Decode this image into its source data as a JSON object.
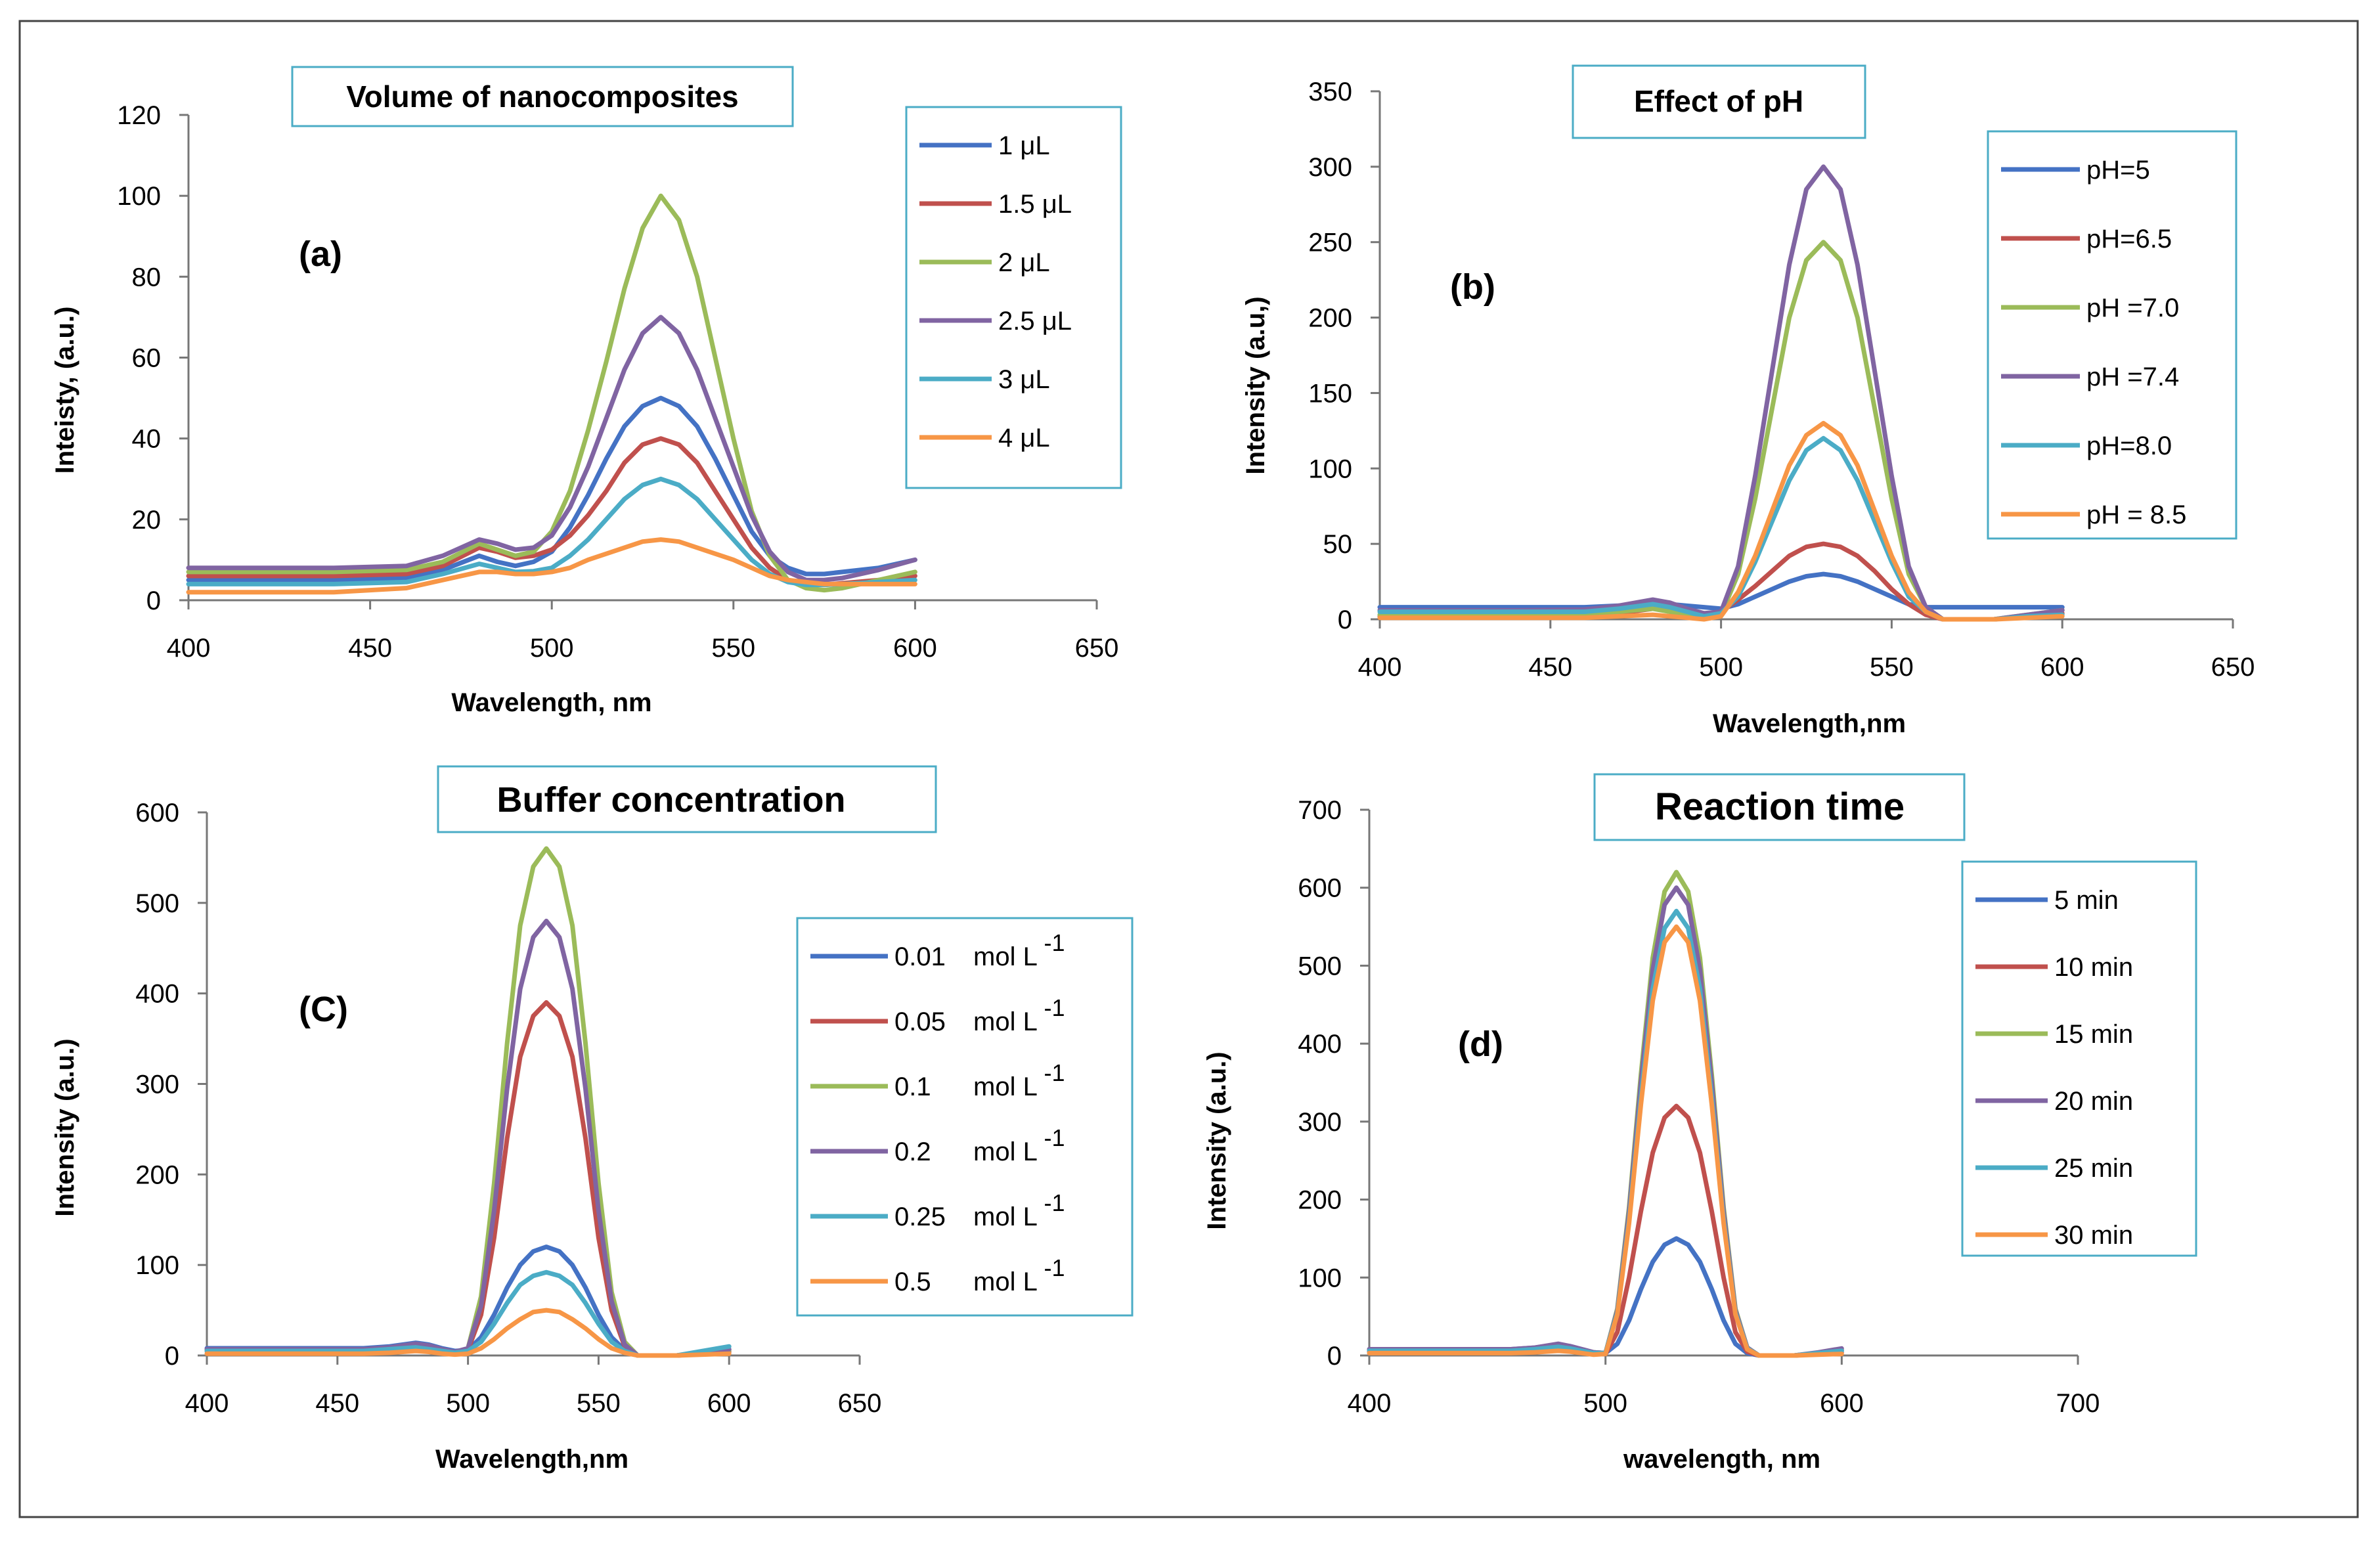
{
  "chart_data": [
    {
      "panel": "(a)",
      "type": "line",
      "title": "Volume of nanocomposites",
      "xlabel": "Wavelength, nm",
      "ylabel": "Inteisty, (a.u.)",
      "xlim": [
        400,
        650
      ],
      "ylim": [
        0,
        120
      ],
      "xticks": [
        400,
        450,
        500,
        550,
        600,
        650
      ],
      "yticks": [
        0,
        20,
        40,
        60,
        80,
        100,
        120
      ],
      "x": [
        400,
        420,
        440,
        460,
        470,
        480,
        485,
        490,
        495,
        500,
        505,
        510,
        515,
        520,
        525,
        530,
        535,
        540,
        545,
        550,
        555,
        560,
        565,
        570,
        575,
        580,
        590,
        600
      ],
      "series": [
        {
          "name": "1 μL",
          "color": "#4472c4",
          "values": [
            5,
            5,
            5,
            5.5,
            7.5,
            11,
            9.5,
            8.5,
            9.5,
            12,
            18,
            26,
            35,
            43,
            48,
            50,
            48,
            43,
            35,
            26,
            17,
            11,
            8,
            6.5,
            6.5,
            7,
            8,
            10
          ]
        },
        {
          "name": "1.5 μL",
          "color": "#c0504d",
          "values": [
            6,
            6,
            6,
            6.5,
            8.5,
            13,
            12,
            10.5,
            11,
            12.5,
            16,
            21,
            27,
            34,
            38.5,
            40,
            38.5,
            34,
            27,
            20,
            13,
            8,
            5,
            4,
            3.8,
            4.2,
            5,
            6
          ]
        },
        {
          "name": "2 μL",
          "color": "#9bbb59",
          "values": [
            7,
            7,
            7,
            7.5,
            9.5,
            14,
            12.5,
            11,
            12,
            17,
            27,
            42,
            59,
            77,
            92,
            100,
            94,
            80,
            60,
            40,
            22,
            11,
            5,
            3,
            2.5,
            3,
            5,
            7
          ]
        },
        {
          "name": "2.5 μL",
          "color": "#8064a2",
          "values": [
            8,
            8,
            8,
            8.5,
            11,
            15,
            14,
            12.5,
            13,
            16,
            23,
            33,
            45,
            57,
            66,
            70,
            66,
            57,
            45,
            33,
            21,
            12,
            7,
            5,
            5,
            5.5,
            7.5,
            10
          ]
        },
        {
          "name": "3 μL",
          "color": "#4bacc6",
          "values": [
            4,
            4,
            4,
            4.5,
            6.5,
            9,
            8,
            7,
            7.2,
            8,
            11,
            15,
            20,
            25,
            28.5,
            30,
            28.5,
            25,
            20,
            15,
            10,
            6.5,
            4.5,
            3.8,
            3.8,
            4,
            4.5,
            5
          ]
        },
        {
          "name": "4 μL",
          "color": "#f79646",
          "values": [
            2,
            2,
            2,
            3,
            5,
            7,
            7,
            6.5,
            6.5,
            7,
            8,
            10,
            11.5,
            13,
            14.5,
            15,
            14.5,
            13,
            11.5,
            10,
            8,
            6,
            5,
            4.5,
            4,
            4,
            4,
            4
          ]
        }
      ],
      "panel_label": "(a)"
    },
    {
      "panel": "(b)",
      "type": "line",
      "title": "Effect of pH",
      "xlabel": "Wavelength,nm",
      "ylabel": "Intensity (a.u,)",
      "xlim": [
        400,
        650
      ],
      "ylim": [
        0,
        350
      ],
      "xticks": [
        400,
        450,
        500,
        550,
        600,
        650
      ],
      "yticks": [
        0,
        50,
        100,
        150,
        200,
        250,
        300,
        350
      ],
      "x": [
        400,
        420,
        440,
        460,
        470,
        480,
        485,
        490,
        495,
        500,
        505,
        510,
        515,
        520,
        525,
        530,
        535,
        540,
        545,
        550,
        555,
        560,
        565,
        570,
        575,
        580,
        590,
        600
      ],
      "series": [
        {
          "name": "pH=5",
          "color": "#4472c4",
          "values": [
            8,
            8,
            8,
            8,
            9,
            11,
            10,
            9,
            8,
            7,
            10,
            15,
            20,
            25,
            28.5,
            30,
            28.5,
            25,
            20,
            15,
            10,
            8,
            8,
            8,
            8,
            8,
            8,
            8
          ]
        },
        {
          "name": "pH=6.5",
          "color": "#c0504d",
          "values": [
            2,
            2,
            2,
            2.5,
            4,
            7,
            6,
            4,
            3,
            5,
            13,
            22,
            32,
            42,
            48,
            50,
            48,
            42,
            32,
            20,
            10,
            3,
            0,
            0,
            0,
            0,
            2,
            4
          ]
        },
        {
          "name": "pH =7.0",
          "color": "#9bbb59",
          "values": [
            3,
            3,
            3,
            3,
            5,
            7,
            5,
            3,
            1,
            3,
            30,
            80,
            140,
            200,
            238,
            250,
            238,
            200,
            140,
            80,
            30,
            8,
            0,
            0,
            0,
            0,
            3,
            6
          ]
        },
        {
          "name": "pH =7.4",
          "color": "#8064a2",
          "values": [
            6,
            6,
            6,
            6.5,
            9,
            13,
            11,
            7,
            4,
            5,
            35,
            95,
            165,
            235,
            285,
            300,
            285,
            235,
            165,
            95,
            35,
            8,
            0,
            0,
            0,
            0,
            3,
            6
          ]
        },
        {
          "name": "pH=8.0",
          "color": "#4bacc6",
          "values": [
            5,
            5,
            5,
            5,
            7,
            10,
            8,
            5,
            2,
            4,
            15,
            38,
            65,
            92,
            112,
            120,
            112,
            92,
            65,
            38,
            15,
            5,
            0,
            0,
            0,
            0,
            2,
            3
          ]
        },
        {
          "name": "pH = 8.5",
          "color": "#f79646",
          "values": [
            1,
            1,
            1,
            1,
            2,
            3,
            2,
            1,
            0,
            2,
            18,
            42,
            72,
            102,
            122,
            130,
            122,
            102,
            72,
            42,
            18,
            5,
            0,
            0,
            0,
            0,
            1,
            2
          ]
        }
      ],
      "panel_label": "(b)"
    },
    {
      "panel": "(C)",
      "type": "line",
      "title": "Buffer concentration",
      "xlabel": "Wavelength,nm",
      "ylabel": "Intensity (a.u.)",
      "xlim": [
        400,
        650
      ],
      "ylim": [
        0,
        600
      ],
      "xticks": [
        400,
        450,
        500,
        550,
        600,
        650
      ],
      "yticks": [
        0,
        100,
        200,
        300,
        400,
        500,
        600
      ],
      "x": [
        400,
        420,
        440,
        460,
        470,
        480,
        485,
        490,
        495,
        500,
        505,
        510,
        515,
        520,
        525,
        530,
        535,
        540,
        545,
        550,
        555,
        560,
        565,
        570,
        575,
        580,
        590,
        600
      ],
      "series": [
        {
          "name": "0.01",
          "color": "#4472c4",
          "values": [
            8,
            8,
            8,
            8,
            10,
            14,
            12,
            8,
            5,
            6,
            20,
            45,
            75,
            100,
            115,
            120,
            115,
            100,
            75,
            45,
            20,
            6,
            0,
            0,
            0,
            0,
            3,
            6
          ]
        },
        {
          "name": "0.05",
          "color": "#c0504d",
          "values": [
            5,
            5,
            5,
            5,
            7,
            10,
            8,
            5,
            3,
            6,
            45,
            130,
            240,
            330,
            375,
            390,
            375,
            330,
            240,
            130,
            50,
            10,
            0,
            0,
            0,
            0,
            2,
            4
          ]
        },
        {
          "name": "0.1",
          "color": "#9bbb59",
          "values": [
            6,
            6,
            6,
            6,
            8,
            12,
            10,
            6,
            3,
            8,
            65,
            190,
            345,
            475,
            540,
            560,
            540,
            475,
            345,
            190,
            70,
            15,
            0,
            0,
            0,
            0,
            3,
            6
          ]
        },
        {
          "name": "0.2",
          "color": "#8064a2",
          "values": [
            7,
            7,
            7,
            7,
            9,
            13,
            11,
            7,
            4,
            8,
            55,
            160,
            295,
            405,
            462,
            480,
            462,
            405,
            295,
            160,
            60,
            12,
            0,
            0,
            0,
            0,
            3,
            7
          ]
        },
        {
          "name": "0.25",
          "color": "#4bacc6",
          "values": [
            5,
            5,
            5,
            5,
            7,
            9,
            7,
            5,
            3,
            5,
            15,
            35,
            58,
            78,
            88,
            92,
            88,
            78,
            58,
            35,
            15,
            5,
            0,
            0,
            0,
            0,
            5,
            10
          ]
        },
        {
          "name": "0.5",
          "color": "#f79646",
          "values": [
            2,
            2,
            2,
            2,
            3,
            5,
            4,
            2,
            1,
            2,
            8,
            18,
            30,
            40,
            48,
            50,
            48,
            40,
            30,
            18,
            8,
            3,
            0,
            0,
            0,
            0,
            1,
            2
          ]
        }
      ],
      "legend_unit": "mol L",
      "legend_sup": "-1",
      "panel_label": "(C)"
    },
    {
      "panel": "(d)",
      "type": "line",
      "title": "Reaction time",
      "xlabel": "wavelength, nm",
      "ylabel": "Intensity (a.u.)",
      "xlim": [
        400,
        700
      ],
      "ylim": [
        0,
        700
      ],
      "xticks": [
        400,
        500,
        600,
        700
      ],
      "yticks": [
        0,
        100,
        200,
        300,
        400,
        500,
        600,
        700
      ],
      "x": [
        400,
        420,
        440,
        460,
        470,
        480,
        485,
        490,
        495,
        500,
        505,
        510,
        515,
        520,
        525,
        530,
        535,
        540,
        545,
        550,
        555,
        560,
        565,
        570,
        575,
        580,
        590,
        600
      ],
      "series": [
        {
          "name": "5 min",
          "color": "#4472c4",
          "values": [
            8,
            8,
            8,
            8,
            10,
            14,
            12,
            8,
            4,
            3,
            15,
            45,
            85,
            120,
            142,
            150,
            142,
            120,
            85,
            45,
            15,
            3,
            0,
            0,
            0,
            0,
            3,
            6
          ]
        },
        {
          "name": "10 min",
          "color": "#c0504d",
          "values": [
            5,
            5,
            5,
            5,
            7,
            10,
            8,
            5,
            2,
            2,
            30,
            100,
            185,
            260,
            305,
            320,
            305,
            260,
            185,
            100,
            30,
            5,
            0,
            0,
            0,
            0,
            2,
            4
          ]
        },
        {
          "name": "15 min",
          "color": "#9bbb59",
          "values": [
            7,
            7,
            7,
            7,
            9,
            13,
            11,
            7,
            4,
            3,
            60,
            190,
            360,
            510,
            595,
            620,
            595,
            510,
            360,
            190,
            60,
            10,
            0,
            0,
            0,
            0,
            3,
            7
          ]
        },
        {
          "name": "20 min",
          "color": "#8064a2",
          "values": [
            8,
            8,
            8,
            8,
            10,
            15,
            12,
            8,
            4,
            3,
            58,
            185,
            350,
            495,
            578,
            600,
            578,
            495,
            350,
            185,
            58,
            10,
            0,
            0,
            0,
            0,
            4,
            9
          ]
        },
        {
          "name": "25 min",
          "color": "#4bacc6",
          "values": [
            6,
            6,
            6,
            6,
            8,
            11,
            9,
            6,
            3,
            3,
            55,
            175,
            332,
            470,
            548,
            570,
            548,
            470,
            332,
            175,
            55,
            9,
            0,
            0,
            0,
            0,
            3,
            6
          ]
        },
        {
          "name": "30 min",
          "color": "#f79646",
          "values": [
            3,
            3,
            3,
            3,
            4,
            6,
            5,
            3,
            1,
            2,
            53,
            170,
            322,
            455,
            530,
            550,
            530,
            455,
            322,
            170,
            53,
            8,
            0,
            0,
            0,
            0,
            1,
            2
          ]
        }
      ],
      "panel_label": "(d)"
    }
  ]
}
